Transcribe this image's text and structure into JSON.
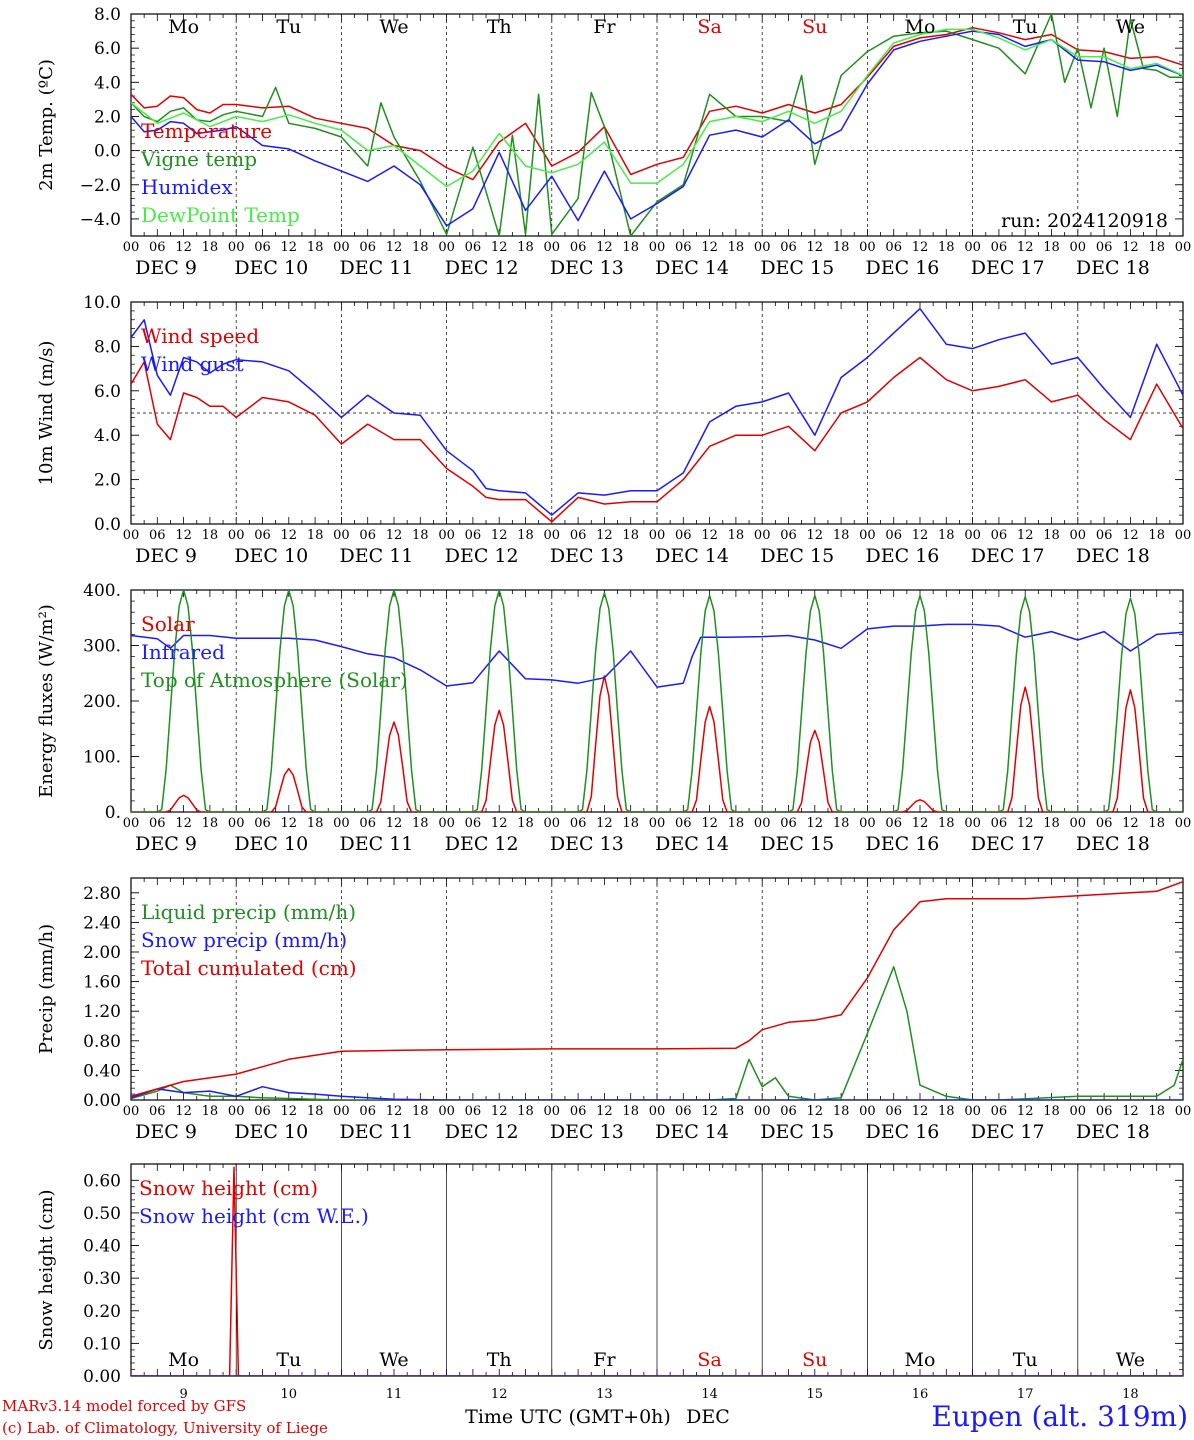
{
  "chart_data": [
    {
      "type": "line",
      "ylabel": "2m Temp. (ºC)",
      "ylim": [
        -5,
        8
      ],
      "yticks": [
        "8.0",
        "6.0",
        "4.0",
        "2.0",
        "0.0",
        "−2.0",
        "−4.0"
      ],
      "ytick_values": [
        8,
        6,
        4,
        2,
        0,
        -2,
        -4
      ],
      "dashed_reference": 0,
      "annotation": "run: 2024120918",
      "series": [
        {
          "name": "Temperature",
          "color": "#e00000",
          "x": [
            0,
            3,
            6,
            9,
            12,
            15,
            18,
            21,
            24,
            30,
            36,
            42,
            48,
            54,
            60,
            66,
            72,
            78,
            84,
            90,
            96,
            102,
            108,
            114,
            120,
            126,
            132,
            138,
            144,
            150,
            156,
            162,
            168,
            174,
            180,
            186,
            192,
            198,
            204,
            210,
            216,
            222,
            228,
            234,
            240
          ],
          "y": [
            3.3,
            2.5,
            2.6,
            3.2,
            3.1,
            2.4,
            2.2,
            2.7,
            2.7,
            2.5,
            2.6,
            1.9,
            1.6,
            1.3,
            0.3,
            0.0,
            -1.0,
            -1.7,
            0.5,
            1.6,
            -0.9,
            -0.1,
            1.4,
            -1.4,
            -0.8,
            -0.4,
            2.3,
            2.6,
            2.2,
            2.7,
            2.2,
            2.7,
            4.3,
            6.1,
            6.6,
            6.8,
            7.2,
            6.9,
            6.5,
            6.8,
            5.9,
            5.8,
            5.4,
            5.5,
            5.0
          ]
        },
        {
          "name": "Vigne temp",
          "color": "#1f8f1f",
          "x": [
            0,
            3,
            6,
            9,
            12,
            15,
            18,
            21,
            24,
            30,
            33,
            36,
            42,
            48,
            54,
            57,
            60,
            66,
            72,
            78,
            84,
            87,
            90,
            93,
            96,
            102,
            105,
            108,
            114,
            120,
            126,
            132,
            138,
            144,
            150,
            153,
            156,
            162,
            168,
            174,
            180,
            186,
            192,
            198,
            204,
            210,
            213,
            216,
            219,
            222,
            225,
            228,
            231,
            234,
            237,
            240
          ],
          "y": [
            2.8,
            2.0,
            1.7,
            2.3,
            2.5,
            1.8,
            1.7,
            2.1,
            2.3,
            2.0,
            3.7,
            1.6,
            1.3,
            0.8,
            -0.9,
            2.8,
            0.8,
            -1.8,
            -4.9,
            0.2,
            -5.0,
            0.9,
            -4.9,
            3.3,
            -4.9,
            -2.8,
            3.4,
            1.4,
            -5.0,
            -3.0,
            -2.0,
            3.3,
            2.0,
            2.0,
            1.7,
            4.4,
            -0.8,
            4.4,
            5.8,
            6.7,
            6.9,
            7.0,
            6.5,
            6.0,
            4.5,
            8.0,
            4.0,
            6.0,
            2.5,
            6.0,
            2.0,
            7.7,
            4.8,
            4.7,
            4.3,
            4.3
          ]
        },
        {
          "name": "Humidex",
          "color": "#1a1aff",
          "x": [
            0,
            3,
            6,
            9,
            12,
            15,
            18,
            21,
            24,
            30,
            36,
            42,
            48,
            54,
            60,
            66,
            72,
            78,
            84,
            90,
            96,
            102,
            108,
            114,
            120,
            126,
            132,
            138,
            144,
            150,
            156,
            162,
            168,
            174,
            180,
            186,
            192,
            198,
            204,
            210,
            216,
            222,
            228,
            234,
            240
          ],
          "y": [
            2.0,
            1.1,
            1.2,
            1.7,
            1.6,
            1.0,
            1.1,
            1.2,
            1.4,
            0.3,
            0.1,
            -0.6,
            -1.2,
            -1.8,
            -0.9,
            -2.0,
            -4.4,
            -3.4,
            -0.1,
            -3.5,
            -1.5,
            -4.1,
            -1.2,
            -4.0,
            -3.1,
            -2.1,
            0.9,
            1.2,
            0.8,
            1.8,
            0.4,
            1.2,
            3.9,
            5.9,
            6.4,
            6.7,
            7.0,
            6.8,
            6.1,
            6.5,
            5.3,
            5.2,
            4.7,
            5.0,
            4.4
          ]
        },
        {
          "name": "DewPoint Temp",
          "color": "#44ee44",
          "x": [
            0,
            6,
            12,
            18,
            24,
            30,
            36,
            42,
            48,
            54,
            60,
            66,
            72,
            78,
            84,
            90,
            96,
            102,
            108,
            114,
            120,
            126,
            132,
            138,
            144,
            150,
            156,
            162,
            168,
            174,
            180,
            186,
            192,
            198,
            204,
            210,
            216,
            222,
            228,
            234,
            240
          ],
          "y": [
            2.8,
            1.6,
            2.2,
            1.4,
            2.0,
            1.7,
            2.1,
            1.6,
            1.2,
            0.0,
            0.3,
            -0.9,
            -2.1,
            -1.2,
            1.0,
            -0.9,
            -1.3,
            -0.8,
            0.5,
            -1.9,
            -1.9,
            -0.8,
            1.7,
            2.0,
            1.7,
            2.3,
            1.6,
            2.3,
            4.4,
            6.3,
            6.8,
            7.1,
            7.1,
            6.6,
            5.9,
            6.5,
            5.5,
            5.5,
            4.8,
            5.1,
            4.4
          ]
        }
      ]
    },
    {
      "type": "line",
      "ylabel": "10m Wind (m/s)",
      "ylim": [
        0,
        10
      ],
      "yticks": [
        "10.0",
        "8.0",
        "6.0",
        "4.0",
        "2.0",
        "0.0"
      ],
      "ytick_values": [
        10,
        8,
        6,
        4,
        2,
        0
      ],
      "dashed_reference": 5,
      "series": [
        {
          "name": "Wind speed",
          "color": "#e00000",
          "x": [
            0,
            3,
            6,
            9,
            12,
            15,
            18,
            21,
            24,
            30,
            36,
            42,
            48,
            54,
            60,
            66,
            72,
            78,
            81,
            84,
            90,
            96,
            102,
            108,
            114,
            120,
            126,
            132,
            138,
            144,
            150,
            156,
            162,
            168,
            174,
            180,
            186,
            192,
            198,
            204,
            210,
            216,
            222,
            228,
            234,
            240
          ],
          "y": [
            6.3,
            7.3,
            4.5,
            3.8,
            5.9,
            5.7,
            5.3,
            5.3,
            4.8,
            5.7,
            5.5,
            4.9,
            3.6,
            4.5,
            3.8,
            3.8,
            2.5,
            1.7,
            1.2,
            1.1,
            1.1,
            0.1,
            1.2,
            0.9,
            1.0,
            1.0,
            2.0,
            3.5,
            4.0,
            4.0,
            4.4,
            3.3,
            5.0,
            5.5,
            6.6,
            7.5,
            6.5,
            6.0,
            6.2,
            6.5,
            5.5,
            5.8,
            4.7,
            3.8,
            6.3,
            4.3
          ]
        },
        {
          "name": "Wind gust",
          "color": "#1a1aff",
          "x": [
            0,
            3,
            6,
            9,
            12,
            15,
            18,
            21,
            24,
            30,
            36,
            42,
            48,
            54,
            60,
            66,
            72,
            78,
            81,
            84,
            90,
            96,
            102,
            108,
            114,
            120,
            126,
            132,
            138,
            144,
            150,
            156,
            162,
            168,
            174,
            180,
            186,
            192,
            198,
            204,
            210,
            216,
            222,
            228,
            234,
            240
          ],
          "y": [
            8.4,
            9.2,
            6.7,
            5.8,
            7.5,
            7.3,
            6.8,
            7.2,
            7.4,
            7.3,
            6.9,
            5.9,
            4.8,
            5.8,
            5.0,
            4.9,
            3.3,
            2.4,
            1.6,
            1.5,
            1.4,
            0.4,
            1.4,
            1.3,
            1.5,
            1.5,
            2.3,
            4.6,
            5.3,
            5.5,
            5.9,
            4.0,
            6.6,
            7.5,
            8.6,
            9.7,
            8.1,
            7.9,
            8.3,
            8.6,
            7.2,
            7.5,
            6.1,
            4.8,
            8.1,
            5.8
          ]
        }
      ]
    },
    {
      "type": "line",
      "ylabel": "Energy fluxes (W/m²)",
      "ylim": [
        0,
        400
      ],
      "yticks": [
        "400.",
        "300.",
        "200.",
        "100.",
        "0."
      ],
      "ytick_values": [
        400,
        300,
        200,
        100,
        0
      ],
      "series": [
        {
          "name": "Solar",
          "color": "#e00000",
          "peak_hour": 12,
          "daily_peaks": [
            30,
            78,
            162,
            183,
            245,
            190,
            147,
            22,
            225,
            220
          ]
        },
        {
          "name": "Infrared",
          "color": "#1a1aff",
          "x": [
            0,
            6,
            9,
            12,
            18,
            24,
            30,
            36,
            42,
            48,
            54,
            60,
            66,
            72,
            78,
            84,
            90,
            96,
            102,
            108,
            114,
            120,
            126,
            128,
            130,
            136,
            144,
            150,
            156,
            162,
            168,
            174,
            180,
            186,
            192,
            198,
            204,
            210,
            216,
            222,
            228,
            234,
            240
          ],
          "y": [
            318,
            312,
            295,
            318,
            318,
            313,
            313,
            313,
            310,
            298,
            285,
            278,
            256,
            227,
            233,
            290,
            240,
            238,
            232,
            242,
            290,
            225,
            232,
            280,
            315,
            315,
            316,
            318,
            310,
            295,
            330,
            335,
            335,
            338,
            338,
            335,
            315,
            325,
            310,
            325,
            290,
            320,
            324
          ]
        },
        {
          "name": "Top of Atmosphere (Solar)",
          "color": "#1f8f1f",
          "peak_hour": 12,
          "daily_peaks": [
            400,
            400,
            400,
            400,
            395,
            390,
            390,
            390,
            388,
            385
          ]
        }
      ]
    },
    {
      "type": "line",
      "ylabel": "Precip (mm/h)",
      "ylim": [
        0,
        3.0
      ],
      "yticks": [
        "2.80",
        "2.40",
        "2.00",
        "1.60",
        "1.20",
        "0.80",
        "0.40",
        "0.00"
      ],
      "ytick_values": [
        2.8,
        2.4,
        2.0,
        1.6,
        1.2,
        0.8,
        0.4,
        0.0
      ],
      "series": [
        {
          "name": "Liquid precip (mm/h)",
          "color": "#1f8f1f",
          "x": [
            0,
            6,
            9,
            12,
            18,
            24,
            30,
            36,
            48,
            120,
            132,
            138,
            141,
            144,
            147,
            150,
            156,
            162,
            168,
            174,
            177,
            180,
            186,
            192,
            198,
            216,
            228,
            234,
            238,
            240
          ],
          "y": [
            0.02,
            0.12,
            0.2,
            0.1,
            0.05,
            0.05,
            0.03,
            0.02,
            0.0,
            0.0,
            0.0,
            0.02,
            0.55,
            0.18,
            0.3,
            0.05,
            0.0,
            0.03,
            0.9,
            1.8,
            1.2,
            0.2,
            0.05,
            0.0,
            0.0,
            0.05,
            0.05,
            0.05,
            0.2,
            0.55
          ]
        },
        {
          "name": "Snow precip (mm/h)",
          "color": "#1a1aff",
          "x": [
            0,
            6,
            12,
            18,
            24,
            30,
            36,
            42,
            48,
            60,
            72,
            240
          ],
          "y": [
            0.03,
            0.15,
            0.1,
            0.12,
            0.05,
            0.18,
            0.1,
            0.08,
            0.05,
            0.01,
            0.0,
            0.0
          ]
        },
        {
          "name": "Total cumulated (cm)",
          "color": "#e00000",
          "x": [
            0,
            12,
            24,
            36,
            48,
            60,
            72,
            96,
            120,
            138,
            141,
            144,
            150,
            156,
            162,
            168,
            174,
            180,
            186,
            192,
            204,
            216,
            228,
            234,
            240
          ],
          "y": [
            0.05,
            0.25,
            0.35,
            0.55,
            0.66,
            0.67,
            0.68,
            0.69,
            0.69,
            0.7,
            0.8,
            0.95,
            1.05,
            1.08,
            1.15,
            1.65,
            2.3,
            2.68,
            2.72,
            2.72,
            2.72,
            2.76,
            2.8,
            2.82,
            2.95
          ]
        }
      ]
    },
    {
      "type": "line",
      "ylabel": "Snow height (cm)",
      "ylim": [
        0,
        0.65
      ],
      "yticks": [
        "0.60",
        "0.50",
        "0.40",
        "0.30",
        "0.20",
        "0.10",
        "0.00"
      ],
      "ytick_values": [
        0.6,
        0.5,
        0.4,
        0.3,
        0.2,
        0.1,
        0.0
      ],
      "series": [
        {
          "name": "Snow height (cm)",
          "color": "#e00000",
          "x": [
            0,
            22.5,
            23.5,
            24.5,
            240
          ],
          "y": [
            0,
            0,
            0.64,
            0,
            0
          ]
        },
        {
          "name": "Snow height (cm W.E.)",
          "color": "#1a1aff",
          "x": [
            0,
            240
          ],
          "y": [
            0,
            0
          ]
        }
      ]
    }
  ],
  "x_axis": {
    "hour_labels": [
      "00",
      "06",
      "12",
      "18"
    ],
    "final_hour_label": "00",
    "day_labels": [
      "DEC  9",
      "DEC 10",
      "DEC 11",
      "DEC 12",
      "DEC 13",
      "DEC 14",
      "DEC 15",
      "DEC 16",
      "DEC 17",
      "DEC 18"
    ],
    "weekdays": [
      {
        "label": "Mo",
        "color": "#000000"
      },
      {
        "label": "Tu",
        "color": "#000000"
      },
      {
        "label": "We",
        "color": "#000000"
      },
      {
        "label": "Th",
        "color": "#000000"
      },
      {
        "label": "Fr",
        "color": "#000000"
      },
      {
        "label": "Sa",
        "color": "#e00000"
      },
      {
        "label": "Su",
        "color": "#e00000"
      },
      {
        "label": "Mo",
        "color": "#000000"
      },
      {
        "label": "Tu",
        "color": "#000000"
      },
      {
        "label": "We",
        "color": "#000000"
      }
    ],
    "bottom_day_numbers": [
      "9",
      "10",
      "11",
      "12",
      "13",
      "14",
      "15",
      "16",
      "17",
      "18"
    ],
    "bottom_label": "Time UTC (GMT+0h)",
    "bottom_month": "DEC"
  },
  "footer": {
    "model_line": "MARv3.14 model forced by GFS",
    "credit_line": "(c) Lab. of Climatology, University of Liege",
    "station": "Eupen (alt. 319m)"
  }
}
